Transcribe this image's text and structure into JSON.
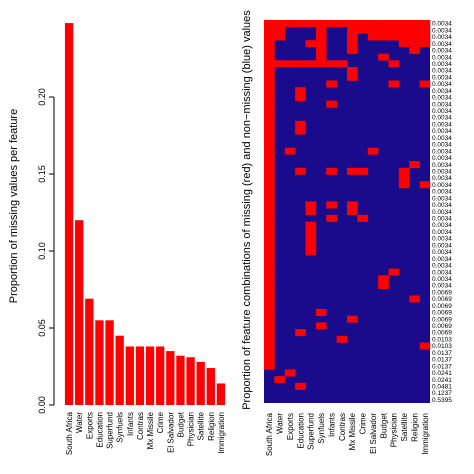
{
  "chart_data": [
    {
      "type": "bar",
      "ylabel": "Proportion of missing values per feature",
      "xlabel": "",
      "categories": [
        "South Africa",
        "Water",
        "Exports",
        "Education",
        "Superfund",
        "Synfuels",
        "Infants",
        "Contras",
        "Mx Missile",
        "Crime",
        "El Salvador",
        "Budget",
        "Physician",
        "Satellite",
        "Religion",
        "Immigration"
      ],
      "values": [
        0.248,
        0.12,
        0.069,
        0.055,
        0.055,
        0.045,
        0.038,
        0.038,
        0.038,
        0.038,
        0.035,
        0.032,
        0.031,
        0.028,
        0.024,
        0.014
      ],
      "ylim": [
        0,
        0.25
      ],
      "yticks": [
        0.0,
        0.05,
        0.1,
        0.15,
        0.2
      ],
      "ytick_labels": [
        "0.00",
        "0.05",
        "0.10",
        "0.15",
        "0.20"
      ],
      "bar_color": "#ff0000"
    },
    {
      "type": "heatmap",
      "ylabel": "Proportion of feature combinations of missing (red) and non−missing (blue) values",
      "columns": [
        "South Africa",
        "Water",
        "Exports",
        "Education",
        "Superfund",
        "Synfuels",
        "Infants",
        "Contras",
        "Mx Missile",
        "Crime",
        "El Salvador",
        "Budget",
        "Physician",
        "Satellite",
        "Religion",
        "Immigration"
      ],
      "row_labels": [
        "0.0034",
        "0.0034",
        "0.0034",
        "0.0034",
        "0.0034",
        "0.0034",
        "0.0034",
        "0.0034",
        "0.0034",
        "0.0034",
        "0.0034",
        "0.0034",
        "0.0034",
        "0.0034",
        "0.0034",
        "0.0034",
        "0.0034",
        "0.0034",
        "0.0034",
        "0.0034",
        "0.0034",
        "0.0034",
        "0.0034",
        "0.0034",
        "0.0034",
        "0.0034",
        "0.0034",
        "0.0034",
        "0.0034",
        "0.0034",
        "0.0034",
        "0.0034",
        "0.0034",
        "0.0034",
        "0.0034",
        "0.0034",
        "0.0034",
        "0.0034",
        "0.0034",
        "0.0034",
        "0.0069",
        "0.0069",
        "0.0069",
        "0.0069",
        "0.0069",
        "0.0069",
        "0.0069",
        "0.0103",
        "0.0103",
        "0.0137",
        "0.0137",
        "0.0137",
        "0.0241",
        "0.0241",
        "0.0481",
        "0.1237",
        "0.5395"
      ],
      "missing_color": "#ff0000",
      "present_color": "#1a0a8c",
      "cells": [
        "1111111111111111",
        "1100010011111111",
        "1100010010111111",
        "1000110010000111",
        "1000010010000010",
        "1000010000010000",
        "1111111100001000",
        "1000000010000000",
        "1000000010000000",
        "1000001000001001",
        "1001000000000000",
        "1001000000000000",
        "1000001000000000",
        "1000000000000000",
        "1000000000000000",
        "1001000000000000",
        "1001000000000000",
        "1000000000000000",
        "1000000000000000",
        "1010000000100000",
        "1000000000000000",
        "1000000000000010",
        "1001001011000100",
        "1000000000000100",
        "1000000000000101",
        "1000000000000000",
        "1000000000000000",
        "1000101010000000",
        "1000100010000000",
        "1000001001000000",
        "1000100000000000",
        "1000100000000000",
        "1000100000000000",
        "1000100000000000",
        "1000100000000000",
        "1000000000000000",
        "1000000000000000",
        "1000000000001000",
        "1000000000010000",
        "1000000000010000",
        "1000000000000000",
        "1000000000000010",
        "1000000000000000",
        "1000010000000000",
        "1000000010000000",
        "1000010000000000",
        "1001000000000000",
        "1000000100000000",
        "1000000000000001",
        "1000000000000000",
        "1000000000000000",
        "1000000000000000",
        "0010000000000000",
        "0100000000000000",
        "0001000000000000",
        "0000000000000000",
        "0000000000000000"
      ]
    }
  ]
}
